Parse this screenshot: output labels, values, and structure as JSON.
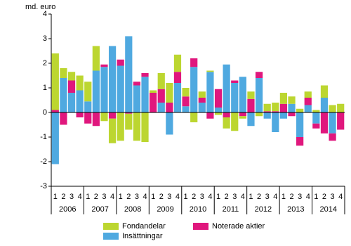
{
  "chart_data": {
    "type": "stacked_bar",
    "y_label": "md. euro",
    "categories": [
      "1",
      "2",
      "3",
      "4",
      "1",
      "2",
      "3",
      "4",
      "1",
      "2",
      "3",
      "4",
      "1",
      "2",
      "3",
      "4",
      "1",
      "2",
      "3",
      "4",
      "1",
      "2",
      "3",
      "4",
      "1",
      "2",
      "3",
      "4",
      "1",
      "2",
      "3",
      "4",
      "1",
      "2",
      "3",
      "4"
    ],
    "years": [
      "2006",
      "2007",
      "2008",
      "2009",
      "2010",
      "2011",
      "2012",
      "2013",
      "2014"
    ],
    "series": [
      {
        "name": "Insättningar",
        "color": "#4fa9e0",
        "values": [
          -2.1,
          1.4,
          0.8,
          0.9,
          0.45,
          1.7,
          1.85,
          2.7,
          1.9,
          3.1,
          1.1,
          1.45,
          0,
          0.4,
          -0.9,
          1.2,
          0.25,
          1.85,
          0.4,
          1.65,
          0.2,
          1.95,
          1.2,
          1.45,
          -0.55,
          1.4,
          -0.25,
          -0.8,
          -0.25,
          0.35,
          -1.0,
          0.3,
          -0.45,
          0.6,
          -0.85,
          0
        ]
      },
      {
        "name": "Noterade aktier",
        "color": "#e0177d",
        "values": [
          0.1,
          -0.5,
          0.5,
          -0.2,
          -0.45,
          -0.55,
          0.1,
          -0.25,
          0.25,
          -0.05,
          0.15,
          0.15,
          0.8,
          0.55,
          0.4,
          0.45,
          0.4,
          0.35,
          0.2,
          -0.25,
          0.75,
          -0.2,
          0.1,
          -0.15,
          0.55,
          0.25,
          0.05,
          0.05,
          0.35,
          -0.15,
          -0.35,
          0.3,
          -0.2,
          -0.85,
          -0.3,
          -0.7
        ]
      },
      {
        "name": "Fondandelar",
        "color": "#bcd630",
        "values": [
          2.3,
          0.4,
          0.35,
          0.6,
          0.8,
          1.0,
          -0.35,
          -1.0,
          -1.15,
          -0.65,
          -1.15,
          -1.2,
          0.1,
          0.65,
          0.8,
          0.7,
          0.35,
          -0.4,
          0.25,
          0.05,
          -0.1,
          -0.45,
          -0.75,
          -0.1,
          0.3,
          -0.15,
          0.3,
          0.35,
          0.45,
          0.3,
          0.15,
          0.25,
          0.1,
          0.5,
          0.3,
          0.35
        ]
      }
    ],
    "ylim": [
      -3,
      4
    ],
    "yticks": [
      -3,
      -2,
      -1,
      0,
      1,
      2,
      3,
      4
    ]
  }
}
